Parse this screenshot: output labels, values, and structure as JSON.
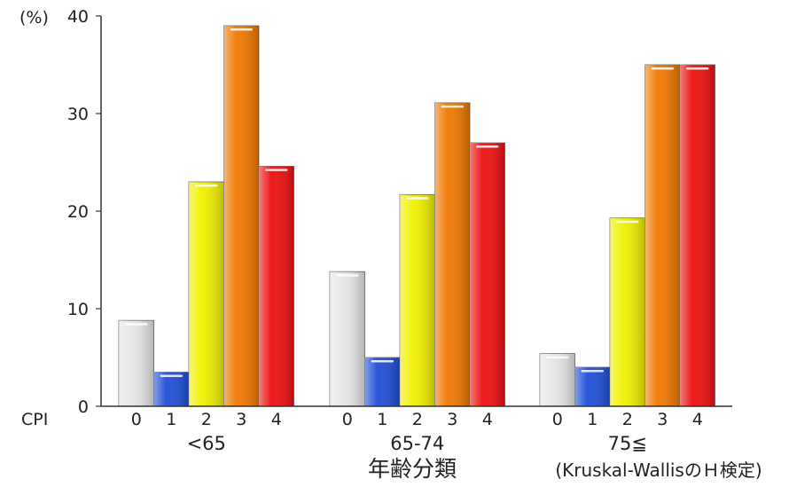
{
  "chart_data": {
    "type": "bar",
    "ylabel": "(%)",
    "ylim": [
      0,
      40
    ],
    "yticks": [
      "0",
      "10",
      "20",
      "30",
      "40"
    ],
    "series_axis_label": "CPI",
    "cpi_labels": [
      "0",
      "1",
      "2",
      "3",
      "4"
    ],
    "groups": [
      {
        "label": "<65",
        "values": [
          8.8,
          3.5,
          23.0,
          39.0,
          24.6
        ]
      },
      {
        "label": "65-74",
        "values": [
          13.8,
          5.0,
          21.7,
          31.1,
          27.0
        ]
      },
      {
        "label": "75≦",
        "values": [
          5.4,
          4.0,
          19.3,
          35.0,
          35.0
        ]
      }
    ],
    "xlabel": "年齢分類",
    "note": "(Kruskal-WallisのＨ検定)",
    "colors": [
      "#e6e6e6",
      "#1f4fd6",
      "#f0f000",
      "#f07800",
      "#ee1010"
    ],
    "grid": false,
    "legend": "none"
  }
}
